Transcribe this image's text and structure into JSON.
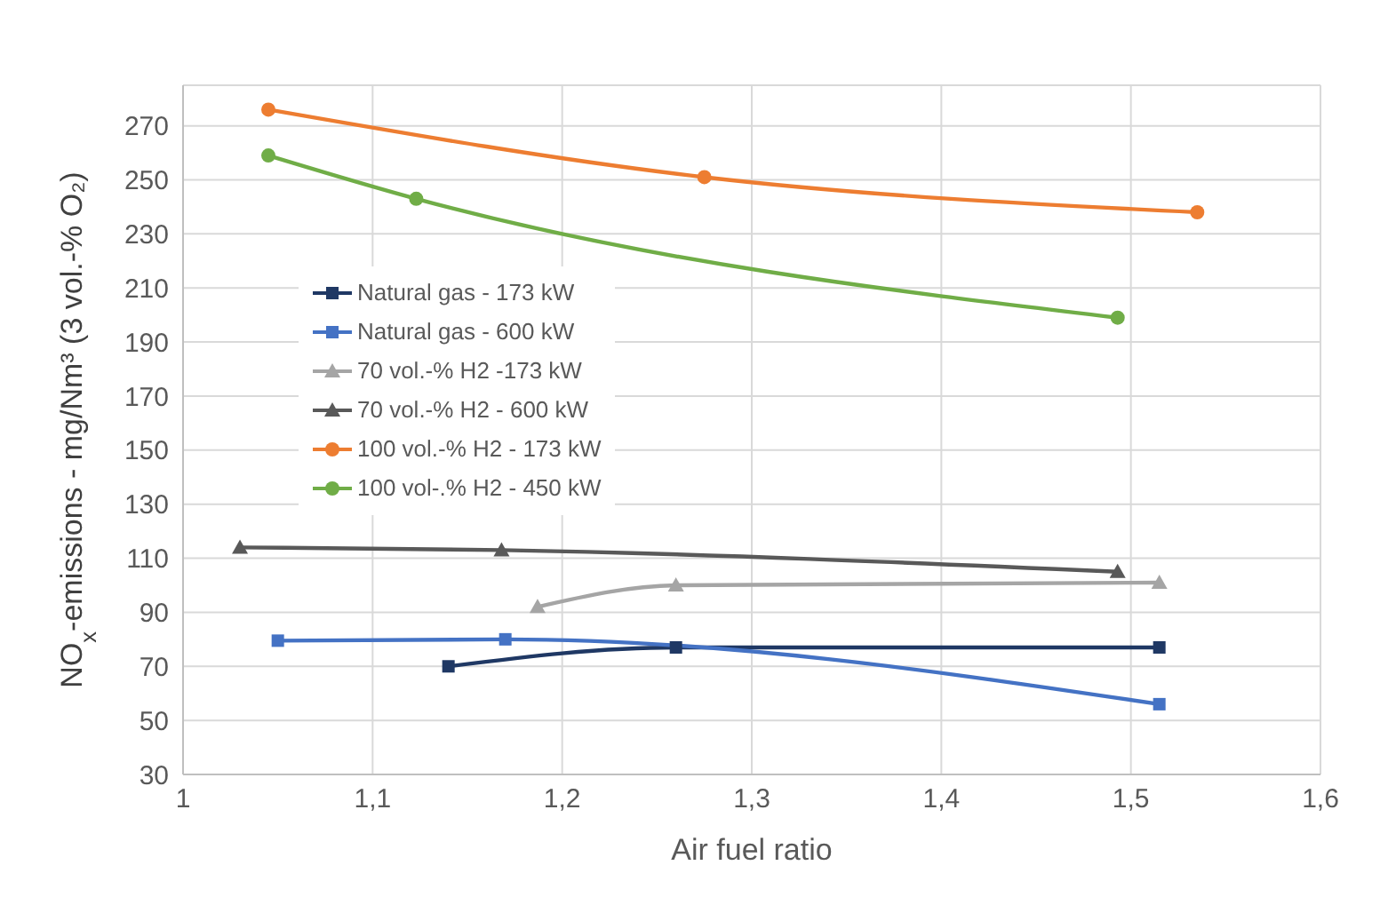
{
  "chart_data": {
    "type": "line",
    "xlabel": "Air fuel ratio",
    "ylabel": "NO$_{x}$-emissions - mg/Nm³ (3 vol.-% O₂)",
    "xlim": [
      1,
      1.6
    ],
    "xticks": [
      {
        "value": 1,
        "label": "1"
      },
      {
        "value": 1.1,
        "label": "1,1"
      },
      {
        "value": 1.2,
        "label": "1,2"
      },
      {
        "value": 1.3,
        "label": "1,3"
      },
      {
        "value": 1.4,
        "label": "1,4"
      },
      {
        "value": 1.5,
        "label": "1,5"
      },
      {
        "value": 1.6,
        "label": "1,6"
      }
    ],
    "ylim": [
      30,
      285
    ],
    "yticks": [
      30,
      50,
      70,
      90,
      110,
      130,
      150,
      170,
      190,
      210,
      230,
      250,
      270
    ],
    "grid": true,
    "legend": "top left",
    "series": [
      {
        "name": "Natural gas - 173 kW",
        "color": "#1f3864",
        "marker": "square",
        "x": [
          1.14,
          1.26,
          1.515
        ],
        "values": [
          70,
          77,
          77
        ]
      },
      {
        "name": "Natural gas - 600 kW",
        "color": "#4472c4",
        "marker": "square",
        "x": [
          1.05,
          1.17,
          1.515
        ],
        "values": [
          79.5,
          80,
          56
        ]
      },
      {
        "name": "70 vol.-% H2 -173 kW",
        "color": "#a5a5a5",
        "marker": "triangle",
        "x": [
          1.187,
          1.26,
          1.515
        ],
        "values": [
          92,
          100,
          101
        ]
      },
      {
        "name": "70 vol.-% H2 - 600 kW",
        "color": "#595959",
        "marker": "triangle",
        "x": [
          1.03,
          1.168,
          1.493
        ],
        "values": [
          114,
          113,
          105
        ]
      },
      {
        "name": "100 vol.-% H2 - 173 kW",
        "color": "#ed7d31",
        "marker": "circle",
        "x": [
          1.045,
          1.275,
          1.535
        ],
        "values": [
          276,
          251,
          238
        ]
      },
      {
        "name": "100 vol-.% H2 - 450 kW",
        "color": "#70ad47",
        "marker": "circle",
        "x": [
          1.045,
          1.123,
          1.493
        ],
        "values": [
          259,
          243,
          199
        ]
      }
    ]
  }
}
